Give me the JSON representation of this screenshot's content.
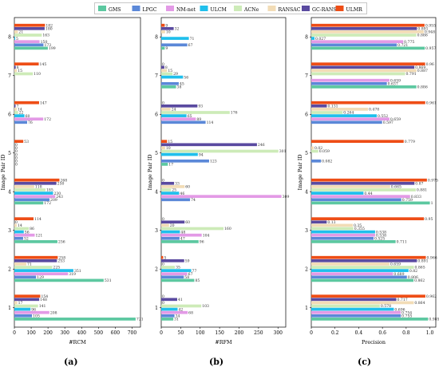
{
  "legend": {
    "items": [
      {
        "name": "GMS",
        "color": "#5cc8a0"
      },
      {
        "name": "LPGC",
        "color": "#5b88d8"
      },
      {
        "name": "NM-net",
        "color": "#e39ae6"
      },
      {
        "name": "ULCM",
        "color": "#1fbfec"
      },
      {
        "name": "ACNe",
        "color": "#cdebb8"
      },
      {
        "name": "RANSAC",
        "color": "#f2dcb6"
      },
      {
        "name": "GC-RANSAC",
        "color": "#5a4aa0"
      },
      {
        "name": "ULMR",
        "color": "#ee4d16"
      }
    ]
  },
  "panel_labels": [
    "(a)",
    "(b)",
    "(c)"
  ],
  "chart_data": [
    {
      "type": "bar",
      "orientation": "horizontal",
      "xlabel": "#RCM",
      "ylabel": "Image Pair ID",
      "categories": [
        "1",
        "2",
        "3",
        "4",
        "5",
        "6",
        "7",
        "8"
      ],
      "xlim": [
        0,
        750
      ],
      "xticks": [
        0,
        100,
        200,
        300,
        400,
        500,
        600,
        700
      ],
      "series": [
        {
          "name": "GMS",
          "values": [
            721,
            531,
            256,
            172,
            0,
            0,
            0,
            199
          ]
        },
        {
          "name": "LPGC",
          "values": [
            105,
            129,
            52,
            209,
            0,
            76,
            0,
            173
          ]
        },
        {
          "name": "NM-net",
          "values": [
            208,
            319,
            121,
            243,
            0,
            172,
            0,
            150
          ]
        },
        {
          "name": "ULCM",
          "values": [
            96,
            351,
            56,
            230,
            0,
            60,
            0,
            5
          ]
        },
        {
          "name": "ACNe",
          "values": [
            141,
            225,
            86,
            185,
            0,
            22,
            110,
            163
          ]
        },
        {
          "name": "RANSAC",
          "values": [
            17,
            71,
            14,
            118,
            0,
            14,
            15,
            21
          ]
        },
        {
          "name": "GC-RANSAC",
          "values": [
            148,
            253,
            0,
            250,
            0,
            7,
            8,
            180
          ]
        },
        {
          "name": "ULMR",
          "values": [
            154,
            258,
            114,
            268,
            53,
            147,
            145,
            182
          ]
        }
      ],
      "value_labels": [
        [
          "721",
          "531",
          "256",
          "172",
          "0",
          "",
          "",
          "199"
        ],
        [
          "105",
          "129",
          "52",
          "209",
          "0",
          "76",
          "",
          "173"
        ],
        [
          "208",
          "319",
          "121",
          "243",
          "0",
          "172",
          "",
          "150"
        ],
        [
          "96",
          "351",
          "56",
          "230",
          "0",
          "60",
          "",
          "5"
        ],
        [
          "141",
          "225",
          "86",
          "185",
          "0",
          "22",
          "110",
          "163"
        ],
        [
          "17",
          "71",
          "14",
          "118",
          "0",
          "14",
          "15",
          "21"
        ],
        [
          "148",
          "253",
          "0",
          "250",
          "0",
          "7",
          "8",
          "180"
        ],
        [
          "154",
          "258",
          "114",
          "268",
          "53",
          "147",
          "145",
          "182"
        ]
      ]
    },
    {
      "type": "bar",
      "orientation": "horizontal",
      "xlabel": "#RFM",
      "ylabel": "Image Pair ID",
      "categories": [
        "1",
        "2",
        "3",
        "4",
        "5",
        "6",
        "7",
        "8"
      ],
      "xlim": [
        0,
        320
      ],
      "xticks": [
        0,
        50,
        100,
        150,
        200,
        250,
        300
      ],
      "series": [
        {
          "name": "GMS",
          "values": [
            31,
            85,
            96,
            0,
            17,
            0,
            38,
            9
          ]
        },
        {
          "name": "LPGC",
          "values": [
            34,
            58,
            47,
            74,
            123,
            114,
            45,
            67
          ]
        },
        {
          "name": "NM-net",
          "values": [
            68,
            67,
            104,
            309,
            0,
            89,
            0,
            0
          ]
        },
        {
          "name": "ULCM",
          "values": [
            42,
            77,
            48,
            46,
            94,
            65,
            56,
            71
          ]
        },
        {
          "name": "ACNe",
          "values": [
            103,
            35,
            160,
            25,
            301,
            176,
            29,
            0
          ]
        },
        {
          "name": "RANSAC",
          "values": [
            0,
            0,
            20,
            60,
            10,
            24,
            15,
            10
          ]
        },
        {
          "name": "GC-RANSAC",
          "values": [
            41,
            59,
            60,
            33,
            246,
            93,
            8,
            32
          ]
        },
        {
          "name": "ULMR",
          "values": [
            0,
            5,
            0,
            0,
            15,
            0,
            0,
            9
          ]
        }
      ],
      "value_labels": [
        [
          "31",
          "85",
          "96",
          "",
          "17",
          "",
          "38",
          "9"
        ],
        [
          "34",
          "58",
          "47",
          "74",
          "123",
          "114",
          "45",
          "67"
        ],
        [
          "68",
          "67",
          "104",
          "309",
          "",
          "89",
          "",
          ""
        ],
        [
          "42",
          "77",
          "48",
          "46",
          "94",
          "65",
          "56",
          "71"
        ],
        [
          "103",
          "35",
          "160",
          "25",
          "301",
          "176",
          "29",
          ""
        ],
        [
          "0",
          "0",
          "20",
          "60",
          "10",
          "24",
          "15",
          "10"
        ],
        [
          "41",
          "59",
          "60",
          "33",
          "246",
          "93",
          "8",
          "32"
        ],
        [
          "0",
          "5",
          "0",
          "0",
          "15",
          "0",
          "0",
          "9"
        ]
      ]
    },
    {
      "type": "bar",
      "orientation": "horizontal",
      "xlabel": "Precision",
      "ylabel": "Image Pair ID",
      "categories": [
        "1",
        "2",
        "3",
        "4",
        "5",
        "6",
        "7",
        "8"
      ],
      "xlim": [
        0,
        1.05
      ],
      "xticks": [
        0,
        0.2,
        0.4,
        0.6,
        0.8,
        1.0
      ],
      "xtick_labels": [
        "0",
        "0.2",
        "0.4",
        "0.6",
        "0.8",
        "1.0"
      ],
      "series": [
        {
          "name": "GMS",
          "values": [
            0.985,
            0.862,
            0.711,
            1,
            0,
            0,
            0.886,
            0.957
          ]
        },
        {
          "name": "LPGC",
          "values": [
            0.755,
            0.806,
            0.525,
            0.759,
            0.082,
            0.597,
            0.637,
            0.721
          ]
        },
        {
          "name": "NM-net",
          "values": [
            0.754,
            0.689,
            0.538,
            0.833,
            0,
            0.659,
            0.659,
            0.775
          ]
        },
        {
          "name": "ULCM",
          "values": [
            0.696,
            0.82,
            0.538,
            0.44,
            0,
            0.552,
            0,
            0.027
          ]
        },
        {
          "name": "ACNe",
          "values": [
            0.578,
            0.865,
            0.355,
            0.881,
            0.059,
            0.264,
            0.791,
            0.886
          ]
        },
        {
          "name": "RANSAC",
          "values": [
            0.864,
            0.659,
            0.35,
            0.665,
            0.02,
            0.478,
            0.887,
            0.948
          ]
        },
        {
          "name": "GC-RANSAC",
          "values": [
            0.717,
            0.891,
            0.13,
            0.87,
            0,
            0.131,
            0.869,
            0.891
          ]
        },
        {
          "name": "ULMR",
          "values": [
            0.962,
            0.966,
            0.95,
            0.975,
            0.779,
            0.961,
            0.96,
            0.955
          ]
        }
      ],
      "value_labels": [
        [
          "0.985",
          "0.862",
          "0.711",
          "1",
          "",
          "",
          "0.886",
          "0.957"
        ],
        [
          "0.755",
          "0.806",
          "0.525",
          "0.759",
          "0.082",
          "0.597",
          "0.637",
          "0.721"
        ],
        [
          "0.754",
          "0.689",
          "0.538",
          "0.833",
          "",
          "0.659",
          "0.659",
          "0.775"
        ],
        [
          "0.696",
          "0.82",
          "0.538",
          "0.44",
          "",
          "0.552",
          "",
          "0.027"
        ],
        [
          "0.578",
          "0.865",
          "0.355",
          "0.881",
          "0.059",
          "0.264",
          "0.791",
          "0.886"
        ],
        [
          "0.864",
          "0.659",
          "0.35",
          "0.665",
          "0.02",
          "0.478",
          "0.887",
          "0.948"
        ],
        [
          "0.717",
          "0.891",
          "0.13",
          "0.87",
          "",
          "0.131",
          "0.869",
          "0.891"
        ],
        [
          "0.962",
          "0.966",
          "0.95",
          "0.975",
          "0.779",
          "0.961",
          "0.96",
          "0.955"
        ]
      ]
    }
  ]
}
